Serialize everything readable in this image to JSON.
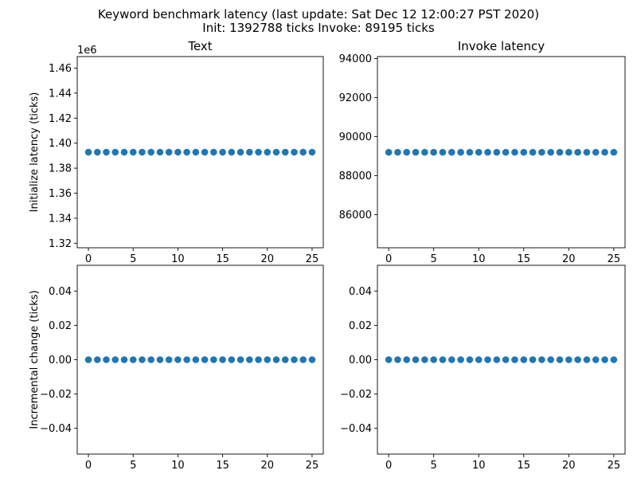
{
  "figure": {
    "suptitle_line1": "Keyword benchmark latency (last update: Sat Dec 12 12:00:27 PST 2020)",
    "suptitle_line2": "Init: 1392788 ticks Invoke: 89195 ticks",
    "marker_color": "#1f77b4"
  },
  "chart_data": [
    {
      "type": "scatter",
      "title": "Text",
      "ylabel": "Initialize latency (ticks)",
      "xlabel": "",
      "offset_label": "1e6",
      "xlim": [
        -1.25,
        26.25
      ],
      "ylim": [
        1.3164,
        1.4692
      ],
      "xticks": [
        0,
        5,
        10,
        15,
        20,
        25
      ],
      "yticks": [
        1.32,
        1.34,
        1.36,
        1.38,
        1.4,
        1.42,
        1.44,
        1.46
      ],
      "ytick_labels": [
        "1.32",
        "1.34",
        "1.36",
        "1.38",
        "1.40",
        "1.42",
        "1.44",
        "1.46"
      ],
      "x": [
        0,
        1,
        2,
        3,
        4,
        5,
        6,
        7,
        8,
        9,
        10,
        11,
        12,
        13,
        14,
        15,
        16,
        17,
        18,
        19,
        20,
        21,
        22,
        23,
        24,
        25
      ],
      "y": [
        1.392788,
        1.392788,
        1.392788,
        1.392788,
        1.392788,
        1.392788,
        1.392788,
        1.392788,
        1.392788,
        1.392788,
        1.392788,
        1.392788,
        1.392788,
        1.392788,
        1.392788,
        1.392788,
        1.392788,
        1.392788,
        1.392788,
        1.392788,
        1.392788,
        1.392788,
        1.392788,
        1.392788,
        1.392788,
        1.392788
      ]
    },
    {
      "type": "scatter",
      "title": "Invoke latency",
      "ylabel": "",
      "xlabel": "",
      "xlim": [
        -1.25,
        26.25
      ],
      "ylim": [
        84300,
        94100
      ],
      "xticks": [
        0,
        5,
        10,
        15,
        20,
        25
      ],
      "yticks": [
        86000,
        88000,
        90000,
        92000,
        94000
      ],
      "ytick_labels": [
        "86000",
        "88000",
        "90000",
        "92000",
        "94000"
      ],
      "x": [
        0,
        1,
        2,
        3,
        4,
        5,
        6,
        7,
        8,
        9,
        10,
        11,
        12,
        13,
        14,
        15,
        16,
        17,
        18,
        19,
        20,
        21,
        22,
        23,
        24,
        25
      ],
      "y": [
        89195,
        89195,
        89195,
        89195,
        89195,
        89195,
        89195,
        89195,
        89195,
        89195,
        89195,
        89195,
        89195,
        89195,
        89195,
        89195,
        89195,
        89195,
        89195,
        89195,
        89195,
        89195,
        89195,
        89195,
        89195,
        89195
      ]
    },
    {
      "type": "scatter",
      "title": "",
      "ylabel": "Incremental change (ticks)",
      "xlabel": "",
      "xlim": [
        -1.25,
        26.25
      ],
      "ylim": [
        -0.055,
        0.055
      ],
      "xticks": [
        0,
        5,
        10,
        15,
        20,
        25
      ],
      "yticks": [
        -0.04,
        -0.02,
        0.0,
        0.02,
        0.04
      ],
      "ytick_labels": [
        "−0.04",
        "−0.02",
        "0.00",
        "0.02",
        "0.04"
      ],
      "x": [
        0,
        1,
        2,
        3,
        4,
        5,
        6,
        7,
        8,
        9,
        10,
        11,
        12,
        13,
        14,
        15,
        16,
        17,
        18,
        19,
        20,
        21,
        22,
        23,
        24,
        25
      ],
      "y": [
        0,
        0,
        0,
        0,
        0,
        0,
        0,
        0,
        0,
        0,
        0,
        0,
        0,
        0,
        0,
        0,
        0,
        0,
        0,
        0,
        0,
        0,
        0,
        0,
        0,
        0
      ]
    },
    {
      "type": "scatter",
      "title": "",
      "ylabel": "",
      "xlabel": "",
      "xlim": [
        -1.25,
        26.25
      ],
      "ylim": [
        -0.055,
        0.055
      ],
      "xticks": [
        0,
        5,
        10,
        15,
        20,
        25
      ],
      "yticks": [
        -0.04,
        -0.02,
        0.0,
        0.02,
        0.04
      ],
      "ytick_labels": [
        "−0.04",
        "−0.02",
        "0.00",
        "0.02",
        "0.04"
      ],
      "x": [
        0,
        1,
        2,
        3,
        4,
        5,
        6,
        7,
        8,
        9,
        10,
        11,
        12,
        13,
        14,
        15,
        16,
        17,
        18,
        19,
        20,
        21,
        22,
        23,
        24,
        25
      ],
      "y": [
        0,
        0,
        0,
        0,
        0,
        0,
        0,
        0,
        0,
        0,
        0,
        0,
        0,
        0,
        0,
        0,
        0,
        0,
        0,
        0,
        0,
        0,
        0,
        0,
        0,
        0
      ]
    }
  ]
}
